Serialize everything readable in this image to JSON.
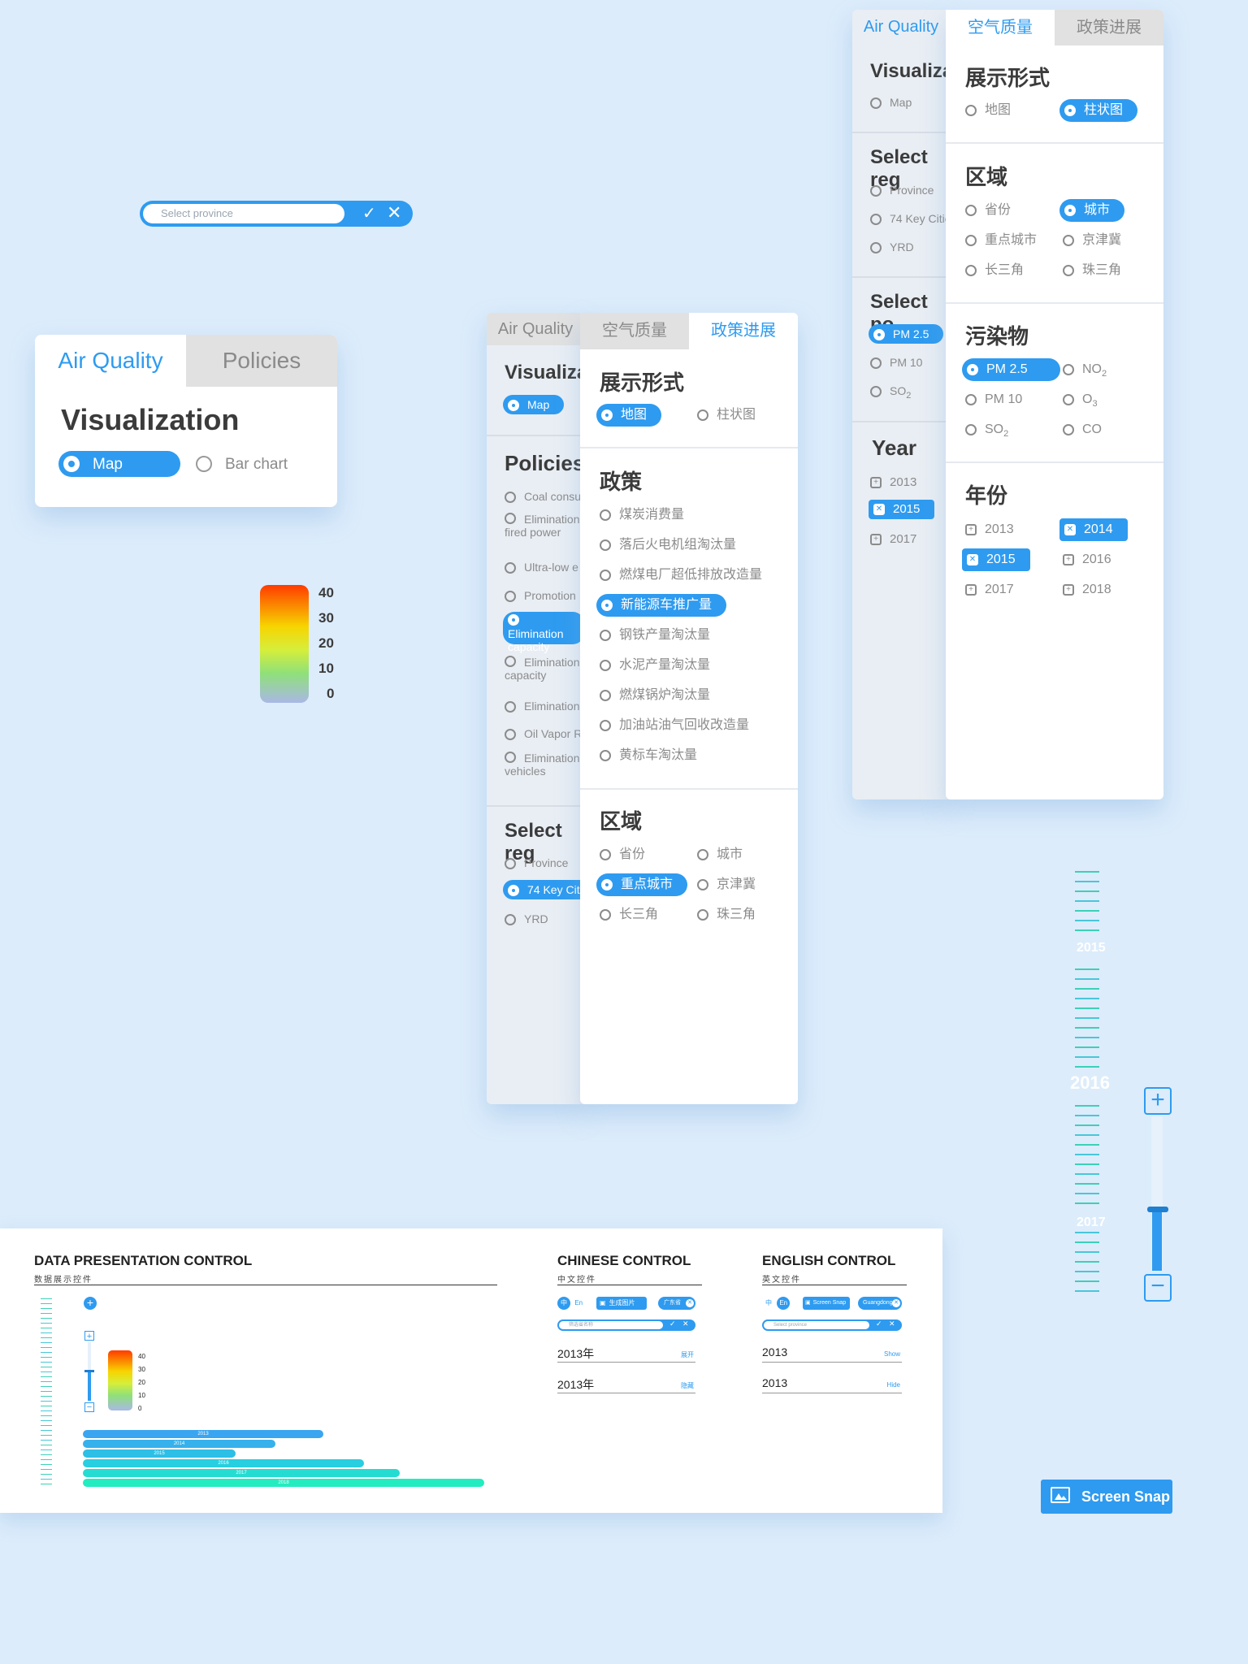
{
  "province_search": {
    "placeholder": "Select province",
    "confirm_icon": "check-icon",
    "clear_icon": "close-icon"
  },
  "small_panel": {
    "tabs": [
      "Air Quality",
      "Policies"
    ],
    "section": "Visualization",
    "options": [
      "Map",
      "Bar chart"
    ],
    "selected": "Map"
  },
  "legend": {
    "labels": [
      "40",
      "30",
      "20",
      "10",
      "0"
    ],
    "colors": [
      "#ff3b00",
      "#f7d400",
      "#d6ee3a",
      "#8fe07a",
      "#a9b8e6"
    ]
  },
  "policy_panel": {
    "back": {
      "tab": "Air Quality",
      "vis_title": "Visualizat",
      "vis_options": [
        "Map"
      ],
      "policies_title": "Policies",
      "policies": [
        "Coal consu",
        "Elimination fired power",
        "Ultra-low e",
        "Promotion",
        "Elimination capacity",
        "Elimination capacity",
        "Elimination",
        "Oil Vapor R",
        "Elimination vehicles"
      ],
      "region_title": "Select reg",
      "regions": [
        "Province",
        "74 Key Citie",
        "YRD"
      ]
    },
    "front": {
      "tabs": [
        "空气质量",
        "政策进展"
      ],
      "active_tab": "政策进展",
      "vis_title": "展示形式",
      "vis_options": [
        "地图",
        "柱状图"
      ],
      "policy_title": "政策",
      "policies": [
        "煤炭消费量",
        "落后火电机组淘汰量",
        "燃煤电厂超低排放改造量",
        "新能源车推广量",
        "钢铁产量淘汰量",
        "水泥产量淘汰量",
        "燃煤锅炉淘汰量",
        "加油站油气回收改造量",
        "黄标车淘汰量"
      ],
      "selected_policy": "新能源车推广量",
      "region_title": "区域",
      "regions": [
        "省份",
        "城市",
        "重点城市",
        "京津冀",
        "长三角",
        "珠三角"
      ],
      "selected_region": "重点城市"
    }
  },
  "air_panel": {
    "back": {
      "tab": "Air Quality",
      "vis_title": "Visualizat",
      "vis_options": [
        "Map"
      ],
      "region_title": "Select reg",
      "regions": [
        "Province",
        "74 Key Citie",
        "YRD"
      ],
      "pollutant_title": "Select po",
      "pollutants": [
        "PM 2.5",
        "PM 10",
        "SO",
        "2"
      ],
      "year_title": "Year",
      "years": [
        "2013",
        "2015",
        "2017"
      ],
      "selected_year": "2015"
    },
    "front": {
      "tabs": [
        "空气质量",
        "政策进展"
      ],
      "active_tab": "空气质量",
      "vis_title": "展示形式",
      "vis_options": [
        "地图",
        "柱状图"
      ],
      "region_title": "区域",
      "regions": [
        "省份",
        "城市",
        "重点城市",
        "京津冀",
        "长三角",
        "珠三角"
      ],
      "selected_region": "城市",
      "pollutant_title": "污染物",
      "pollutants": [
        "PM 2.5",
        "NO",
        "PM 10",
        "O",
        "SO",
        "CO"
      ],
      "pollutant_subs": [
        "2",
        "3",
        "2"
      ],
      "selected_pollutant": "PM 2.5",
      "year_title": "年份",
      "years": [
        "2013",
        "2014",
        "2015",
        "2016",
        "2017",
        "2018"
      ],
      "selected_years": [
        "2014",
        "2015"
      ]
    }
  },
  "timeline": {
    "labels": [
      "2015",
      "2016",
      "2017"
    ],
    "active": "2016",
    "zoom_in_icon": "plus-icon",
    "zoom_out_icon": "minus-icon",
    "zoom_level": 0.4
  },
  "bottom": {
    "data_title": "DATA PRESENTATION CONTROL",
    "data_subtitle": "数据展示控件",
    "mini_legend": [
      "40",
      "30",
      "20",
      "10",
      "0"
    ],
    "bars": [
      {
        "label": "2013",
        "value": 0.6,
        "color": "#3aa5f0"
      },
      {
        "label": "2014",
        "value": 0.48,
        "color": "#36b1ec"
      },
      {
        "label": "2015",
        "value": 0.38,
        "color": "#2dbfe6"
      },
      {
        "label": "2016",
        "value": 0.7,
        "color": "#27cfe0"
      },
      {
        "label": "2017",
        "value": 0.79,
        "color": "#25dcd2"
      },
      {
        "label": "2018",
        "value": 1.0,
        "color": "#22ecc0"
      }
    ],
    "chinese_title": "CHINESE CONTROL",
    "chinese_subtitle": "中文控件",
    "chinese_lang": [
      "中",
      "En"
    ],
    "chinese_snap": "生成图片",
    "chinese_province": "广东省",
    "chinese_placeholder": "筛选省名称",
    "chinese_rows": [
      {
        "year": "2013年",
        "action": "展开"
      },
      {
        "year": "2013年",
        "action": "隐藏"
      }
    ],
    "english_title": "ENGLISH CONTROL",
    "english_subtitle": "英文控件",
    "english_lang": [
      "中",
      "En"
    ],
    "english_snap": "Screen Snap",
    "english_province": "Guangdong",
    "english_placeholder": "Select province",
    "english_rows": [
      {
        "year": "2013",
        "action": "Show"
      },
      {
        "year": "2013",
        "action": "Hide"
      }
    ]
  },
  "screen_snap": {
    "label": "Screen Snap",
    "icon": "image-icon"
  }
}
